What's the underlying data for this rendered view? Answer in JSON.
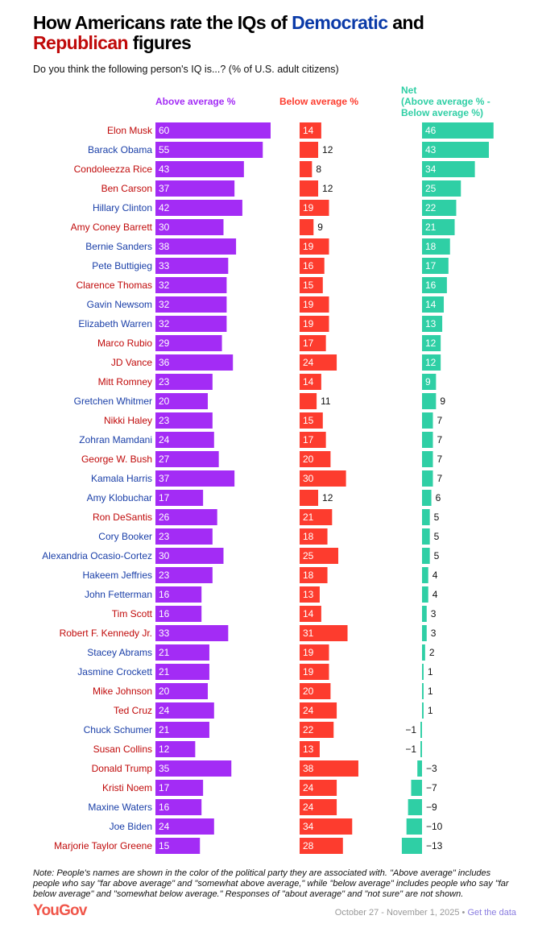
{
  "title": {
    "part1": "How Americans rate the IQs of ",
    "dem": "Democratic",
    "part2": " and ",
    "rep": "Republican",
    "part3": " figures"
  },
  "subtitle": "Do you think the following person's IQ is...? (% of U.S. adult citizens)",
  "colors": {
    "above": "#a32cf5",
    "below": "#fd3c2e",
    "net": "#2fcfa5",
    "dem": "#1a3fa8",
    "rep": "#c00a0a"
  },
  "chart_data": {
    "type": "bar",
    "title": "How Americans rate the IQs of Democratic and Republican figures",
    "series_labels": {
      "above": "Above average %",
      "below": "Below average %",
      "net": "Net\n(Above average % -\nBelow average %)"
    },
    "rows": [
      {
        "name": "Elon Musk",
        "party": "rep",
        "above": 60,
        "below": 14,
        "net": 46
      },
      {
        "name": "Barack Obama",
        "party": "dem",
        "above": 55,
        "below": 12,
        "net": 43
      },
      {
        "name": "Condoleezza Rice",
        "party": "rep",
        "above": 43,
        "below": 8,
        "net": 34
      },
      {
        "name": "Ben Carson",
        "party": "rep",
        "above": 37,
        "below": 12,
        "net": 25
      },
      {
        "name": "Hillary Clinton",
        "party": "dem",
        "above": 42,
        "below": 19,
        "net": 22
      },
      {
        "name": "Amy Coney Barrett",
        "party": "rep",
        "above": 30,
        "below": 9,
        "net": 21
      },
      {
        "name": "Bernie Sanders",
        "party": "dem",
        "above": 38,
        "below": 19,
        "net": 18
      },
      {
        "name": "Pete Buttigieg",
        "party": "dem",
        "above": 33,
        "below": 16,
        "net": 17
      },
      {
        "name": "Clarence Thomas",
        "party": "rep",
        "above": 32,
        "below": 15,
        "net": 16
      },
      {
        "name": "Gavin Newsom",
        "party": "dem",
        "above": 32,
        "below": 19,
        "net": 14
      },
      {
        "name": "Elizabeth Warren",
        "party": "dem",
        "above": 32,
        "below": 19,
        "net": 13
      },
      {
        "name": "Marco Rubio",
        "party": "rep",
        "above": 29,
        "below": 17,
        "net": 12
      },
      {
        "name": "JD Vance",
        "party": "rep",
        "above": 36,
        "below": 24,
        "net": 12
      },
      {
        "name": "Mitt Romney",
        "party": "rep",
        "above": 23,
        "below": 14,
        "net": 9
      },
      {
        "name": "Gretchen Whitmer",
        "party": "dem",
        "above": 20,
        "below": 11,
        "net": 9
      },
      {
        "name": "Nikki Haley",
        "party": "rep",
        "above": 23,
        "below": 15,
        "net": 7
      },
      {
        "name": "Zohran Mamdani",
        "party": "dem",
        "above": 24,
        "below": 17,
        "net": 7
      },
      {
        "name": "George W. Bush",
        "party": "rep",
        "above": 27,
        "below": 20,
        "net": 7
      },
      {
        "name": "Kamala Harris",
        "party": "dem",
        "above": 37,
        "below": 30,
        "net": 7
      },
      {
        "name": "Amy Klobuchar",
        "party": "dem",
        "above": 17,
        "below": 12,
        "net": 6
      },
      {
        "name": "Ron DeSantis",
        "party": "rep",
        "above": 26,
        "below": 21,
        "net": 5
      },
      {
        "name": "Cory Booker",
        "party": "dem",
        "above": 23,
        "below": 18,
        "net": 5
      },
      {
        "name": "Alexandria Ocasio-Cortez",
        "party": "dem",
        "above": 30,
        "below": 25,
        "net": 5
      },
      {
        "name": "Hakeem Jeffries",
        "party": "dem",
        "above": 23,
        "below": 18,
        "net": 4
      },
      {
        "name": "John Fetterman",
        "party": "dem",
        "above": 16,
        "below": 13,
        "net": 4
      },
      {
        "name": "Tim Scott",
        "party": "rep",
        "above": 16,
        "below": 14,
        "net": 3
      },
      {
        "name": "Robert F. Kennedy Jr.",
        "party": "rep",
        "above": 33,
        "below": 31,
        "net": 3
      },
      {
        "name": "Stacey Abrams",
        "party": "dem",
        "above": 21,
        "below": 19,
        "net": 2
      },
      {
        "name": "Jasmine Crockett",
        "party": "dem",
        "above": 21,
        "below": 19,
        "net": 1
      },
      {
        "name": "Mike Johnson",
        "party": "rep",
        "above": 20,
        "below": 20,
        "net": 1
      },
      {
        "name": "Ted Cruz",
        "party": "rep",
        "above": 24,
        "below": 24,
        "net": 1
      },
      {
        "name": "Chuck Schumer",
        "party": "dem",
        "above": 21,
        "below": 22,
        "net": -1
      },
      {
        "name": "Susan Collins",
        "party": "rep",
        "above": 12,
        "below": 13,
        "net": -1
      },
      {
        "name": "Donald Trump",
        "party": "rep",
        "above": 35,
        "below": 38,
        "net": -3
      },
      {
        "name": "Kristi Noem",
        "party": "rep",
        "above": 17,
        "below": 24,
        "net": -7
      },
      {
        "name": "Maxine Waters",
        "party": "dem",
        "above": 16,
        "below": 24,
        "net": -9
      },
      {
        "name": "Joe Biden",
        "party": "dem",
        "above": 24,
        "below": 34,
        "net": -10
      },
      {
        "name": "Marjorie Taylor Greene",
        "party": "rep",
        "above": 15,
        "below": 28,
        "net": -13
      }
    ]
  },
  "note": "Note: People's names are shown in the color of the political party they are associated with. \"Above average\" includes people who say \"far above average\" and \"somewhat above average,\" while \"below average\" includes people who say \"far below average\" and \"somewhat below average.\" Responses of \"about average\" and \"not sure\" are not shown.",
  "footer": {
    "logo": "YouGov",
    "dates": "October 27 - November 1, 2025",
    "separator": " • ",
    "link": "Get the data"
  }
}
